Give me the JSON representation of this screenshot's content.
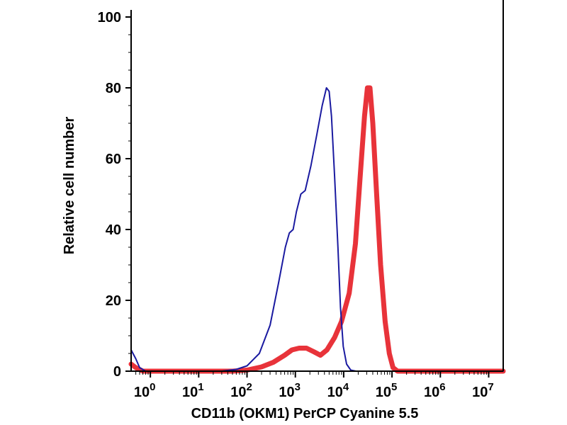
{
  "chart_data": {
    "type": "line",
    "title": "",
    "xlabel": "CD11b (OKM1) PerCP Cyanine 5.5",
    "ylabel": "Relative cell number",
    "x_scale": "log",
    "xlim": [
      0.4,
      20000000
    ],
    "ylim": [
      0,
      100
    ],
    "grid": false,
    "y_ticks": [
      "0",
      "20",
      "40",
      "60",
      "80",
      "100"
    ],
    "x_ticks": [
      {
        "base": "10",
        "exp": "0",
        "value": 1
      },
      {
        "base": "10",
        "exp": "1",
        "value": 10
      },
      {
        "base": "10",
        "exp": "2",
        "value": 100
      },
      {
        "base": "10",
        "exp": "3",
        "value": 1000
      },
      {
        "base": "10",
        "exp": "4",
        "value": 10000
      },
      {
        "base": "10",
        "exp": "5",
        "value": 100000
      },
      {
        "base": "10",
        "exp": "6",
        "value": 1000000
      },
      {
        "base": "10",
        "exp": "7",
        "value": 10000000
      }
    ],
    "series": [
      {
        "color": "#1a1aa0",
        "width": 2,
        "points": [
          [
            0.4,
            6
          ],
          [
            0.5,
            3.5
          ],
          [
            0.6,
            1
          ],
          [
            0.8,
            0
          ],
          [
            5,
            0
          ],
          [
            30,
            0
          ],
          [
            60,
            0.5
          ],
          [
            100,
            1.5
          ],
          [
            180,
            5
          ],
          [
            300,
            13
          ],
          [
            450,
            25
          ],
          [
            620,
            35
          ],
          [
            750,
            39
          ],
          [
            900,
            40
          ],
          [
            1050,
            45
          ],
          [
            1300,
            50
          ],
          [
            1600,
            51
          ],
          [
            2100,
            58
          ],
          [
            2800,
            67
          ],
          [
            3600,
            75
          ],
          [
            4400,
            80
          ],
          [
            5000,
            79
          ],
          [
            5600,
            72
          ],
          [
            6500,
            55
          ],
          [
            7600,
            35
          ],
          [
            8600,
            18
          ],
          [
            9800,
            7
          ],
          [
            11500,
            2
          ],
          [
            14000,
            0.3
          ],
          [
            18000,
            0
          ],
          [
            100000,
            0
          ],
          [
            20000000,
            0
          ]
        ]
      },
      {
        "color": "#e8333a",
        "width": 7,
        "points": [
          [
            0.4,
            2
          ],
          [
            0.5,
            1
          ],
          [
            0.7,
            0
          ],
          [
            50,
            0
          ],
          [
            100,
            0.3
          ],
          [
            200,
            1.2
          ],
          [
            350,
            2.5
          ],
          [
            600,
            4.5
          ],
          [
            850,
            6
          ],
          [
            1200,
            6.5
          ],
          [
            1700,
            6.5
          ],
          [
            2400,
            5.5
          ],
          [
            3300,
            4.5
          ],
          [
            4500,
            6
          ],
          [
            6500,
            9.5
          ],
          [
            9000,
            14
          ],
          [
            13000,
            22
          ],
          [
            17500,
            36
          ],
          [
            22000,
            55
          ],
          [
            27000,
            72
          ],
          [
            31000,
            80
          ],
          [
            35000,
            80
          ],
          [
            40000,
            70
          ],
          [
            48000,
            50
          ],
          [
            58000,
            30
          ],
          [
            72000,
            14
          ],
          [
            88000,
            5
          ],
          [
            105000,
            1
          ],
          [
            130000,
            0
          ],
          [
            20000000,
            0
          ]
        ]
      }
    ]
  }
}
